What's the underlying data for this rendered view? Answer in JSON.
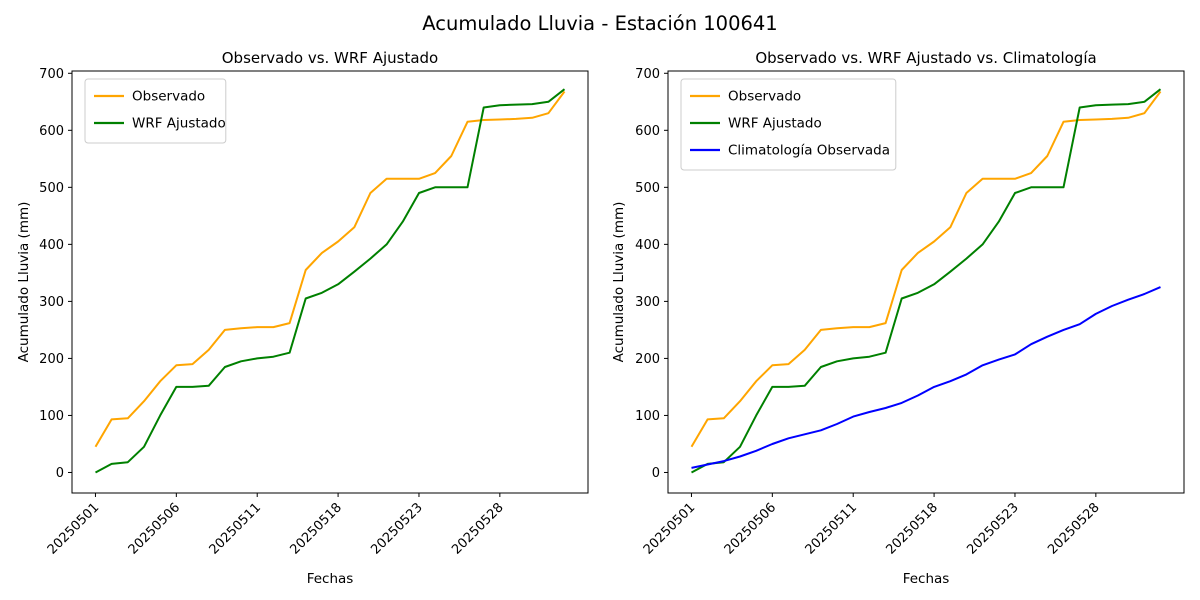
{
  "figure": {
    "suptitle": "Acumulado Lluvia - Estación 100641"
  },
  "chart_data": [
    {
      "type": "line",
      "title": "Observado vs. WRF Ajustado",
      "xlabel": "Fechas",
      "ylabel": "Acumulado Lluvia (mm)",
      "legend_position": "upper left",
      "grid": false,
      "ylim": [
        -36,
        704
      ],
      "xlim": [
        -1.45,
        30.45
      ],
      "y_ticks": [
        0,
        100,
        200,
        300,
        400,
        500,
        600,
        700
      ],
      "x_tick_indices": [
        0,
        5,
        10,
        15,
        20,
        25
      ],
      "x_tick_labels": [
        "20250501",
        "20250506",
        "20250511",
        "20250518",
        "20250523",
        "20250528"
      ],
      "x": [
        "20250501",
        "20250502",
        "20250503",
        "20250504",
        "20250505",
        "20250506",
        "20250507",
        "20250508",
        "20250509",
        "20250510",
        "20250511",
        "20250514",
        "20250515",
        "20250516",
        "20250517",
        "20250518",
        "20250519",
        "20250520",
        "20250521",
        "20250522",
        "20250523",
        "20250524",
        "20250525",
        "20250526",
        "20250527",
        "20250528",
        "20250529",
        "20250530",
        "20250531",
        "20250601"
      ],
      "series": [
        {
          "name": "Observado",
          "color": "#FFA500",
          "values": [
            45,
            93,
            95,
            125,
            160,
            188,
            190,
            215,
            250,
            253,
            255,
            255,
            262,
            355,
            385,
            405,
            430,
            490,
            515,
            515,
            515,
            525,
            555,
            615,
            618,
            619,
            620,
            622,
            630,
            668
          ]
        },
        {
          "name": "WRF Ajustado",
          "color": "#008000",
          "values": [
            0,
            15,
            18,
            45,
            100,
            150,
            150,
            152,
            185,
            195,
            200,
            203,
            210,
            305,
            315,
            330,
            352,
            375,
            400,
            440,
            490,
            500,
            500,
            500,
            640,
            644,
            645,
            646,
            650,
            672
          ]
        }
      ]
    },
    {
      "type": "line",
      "title": "Observado vs. WRF Ajustado vs. Climatología",
      "xlabel": "Fechas",
      "ylabel": "Acumulado Lluvia (mm)",
      "legend_position": "upper left",
      "grid": false,
      "ylim": [
        -36,
        704
      ],
      "xlim": [
        -1.45,
        30.45
      ],
      "y_ticks": [
        0,
        100,
        200,
        300,
        400,
        500,
        600,
        700
      ],
      "x_tick_indices": [
        0,
        5,
        10,
        15,
        20,
        25
      ],
      "x_tick_labels": [
        "20250501",
        "20250506",
        "20250511",
        "20250518",
        "20250523",
        "20250528"
      ],
      "x": [
        "20250501",
        "20250502",
        "20250503",
        "20250504",
        "20250505",
        "20250506",
        "20250507",
        "20250508",
        "20250509",
        "20250510",
        "20250511",
        "20250514",
        "20250515",
        "20250516",
        "20250517",
        "20250518",
        "20250519",
        "20250520",
        "20250521",
        "20250522",
        "20250523",
        "20250524",
        "20250525",
        "20250526",
        "20250527",
        "20250528",
        "20250529",
        "20250530",
        "20250531",
        "20250601"
      ],
      "series": [
        {
          "name": "Observado",
          "color": "#FFA500",
          "values": [
            45,
            93,
            95,
            125,
            160,
            188,
            190,
            215,
            250,
            253,
            255,
            255,
            262,
            355,
            385,
            405,
            430,
            490,
            515,
            515,
            515,
            525,
            555,
            615,
            618,
            619,
            620,
            622,
            630,
            668
          ]
        },
        {
          "name": "WRF Ajustado",
          "color": "#008000",
          "values": [
            0,
            15,
            18,
            45,
            100,
            150,
            150,
            152,
            185,
            195,
            200,
            203,
            210,
            305,
            315,
            330,
            352,
            375,
            400,
            440,
            490,
            500,
            500,
            500,
            640,
            644,
            645,
            646,
            650,
            672
          ]
        },
        {
          "name": "Climatología Observada",
          "color": "#0000FF",
          "values": [
            8,
            14,
            20,
            28,
            38,
            50,
            60,
            67,
            74,
            85,
            98,
            106,
            113,
            122,
            135,
            150,
            160,
            172,
            188,
            198,
            207,
            225,
            238,
            250,
            260,
            278,
            292,
            303,
            313,
            325
          ]
        }
      ]
    }
  ]
}
